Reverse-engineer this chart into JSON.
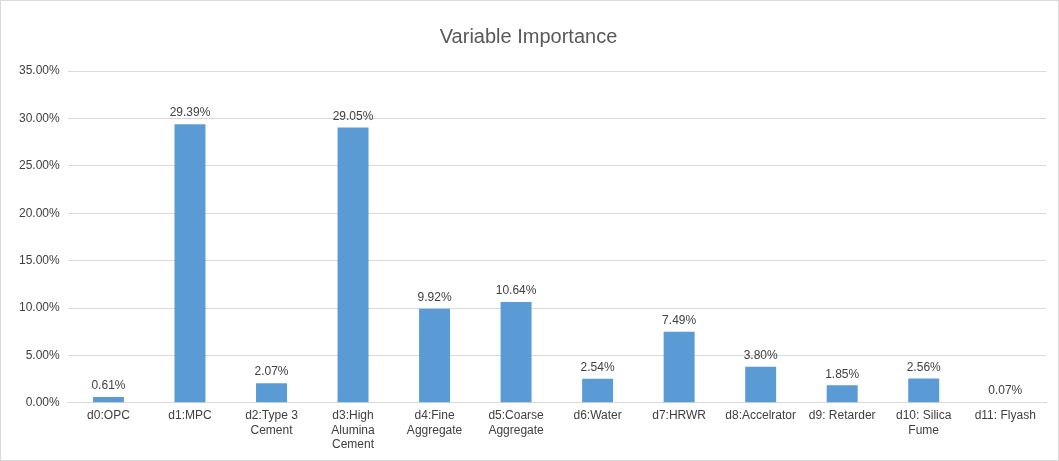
{
  "chart_data": {
    "type": "bar",
    "title": "Variable Importance",
    "categories": [
      "d0:OPC",
      "d1:MPC",
      "d2:Type 3 Cement",
      "d3:High Alumina Cement",
      "d4:Fine Aggregate",
      "d5:Coarse Aggregate",
      "d6:Water",
      "d7:HRWR",
      "d8:Accelrator",
      "d9: Retarder",
      "d10: Silica Fume",
      "d11: Flyash"
    ],
    "values": [
      0.61,
      29.39,
      2.07,
      29.05,
      9.92,
      10.64,
      2.54,
      7.49,
      3.8,
      1.85,
      2.56,
      0.07
    ],
    "value_labels": [
      "0.61%",
      "29.39%",
      "2.07%",
      "29.05%",
      "9.92%",
      "10.64%",
      "2.54%",
      "7.49%",
      "3.80%",
      "1.85%",
      "2.56%",
      "0.07%"
    ],
    "color": "#5b9bd5",
    "ylim": [
      0,
      35
    ],
    "yticks": [
      {
        "value": 0,
        "label": "0.00%"
      },
      {
        "value": 5,
        "label": "5.00%"
      },
      {
        "value": 10,
        "label": "10.00%"
      },
      {
        "value": 15,
        "label": "15.00%"
      },
      {
        "value": 20,
        "label": "20.00%"
      },
      {
        "value": 25,
        "label": "25.00%"
      },
      {
        "value": 30,
        "label": "30.00%"
      },
      {
        "value": 35,
        "label": "35.00%"
      }
    ],
    "grid": "y",
    "legend": false
  }
}
